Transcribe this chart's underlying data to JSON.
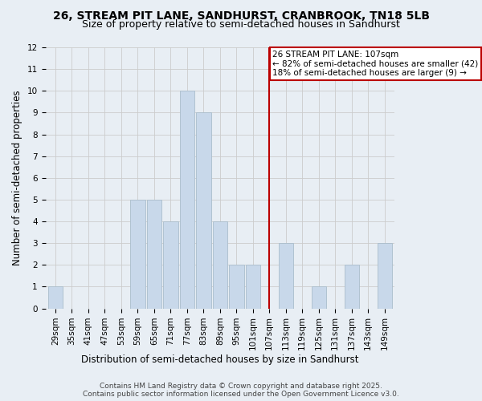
{
  "title_line1": "26, STREAM PIT LANE, SANDHURST, CRANBROOK, TN18 5LB",
  "title_line2": "Size of property relative to semi-detached houses in Sandhurst",
  "xlabel": "Distribution of semi-detached houses by size in Sandhurst",
  "ylabel": "Number of semi-detached properties",
  "categories": [
    "29sqm",
    "35sqm",
    "41sqm",
    "47sqm",
    "53sqm",
    "59sqm",
    "65sqm",
    "71sqm",
    "77sqm",
    "83sqm",
    "89sqm",
    "95sqm",
    "101sqm",
    "107sqm",
    "113sqm",
    "119sqm",
    "125sqm",
    "131sqm",
    "137sqm",
    "143sqm",
    "149sqm"
  ],
  "values": [
    1,
    0,
    0,
    0,
    0,
    5,
    5,
    4,
    10,
    9,
    4,
    2,
    2,
    0,
    3,
    0,
    1,
    0,
    2,
    0,
    3
  ],
  "bar_color": "#c8d8ea",
  "bar_edge_color": "#aabdcc",
  "vline_index": 13,
  "vline_color": "#bb0000",
  "annotation_text": "26 STREAM PIT LANE: 107sqm\n← 82% of semi-detached houses are smaller (42)\n18% of semi-detached houses are larger (9) →",
  "annotation_box_facecolor": "#ffffff",
  "annotation_box_edgecolor": "#bb0000",
  "ylim": [
    0,
    12
  ],
  "yticks": [
    0,
    1,
    2,
    3,
    4,
    5,
    6,
    7,
    8,
    9,
    10,
    11,
    12
  ],
  "grid_color": "#cccccc",
  "background_color": "#e8eef4",
  "title1_fontsize": 10,
  "title2_fontsize": 9,
  "axis_label_fontsize": 8.5,
  "tick_fontsize": 7.5,
  "annotation_fontsize": 7.5,
  "footer_fontsize": 6.5,
  "footer_line1": "Contains HM Land Registry data © Crown copyright and database right 2025.",
  "footer_line2": "Contains public sector information licensed under the Open Government Licence v3.0."
}
